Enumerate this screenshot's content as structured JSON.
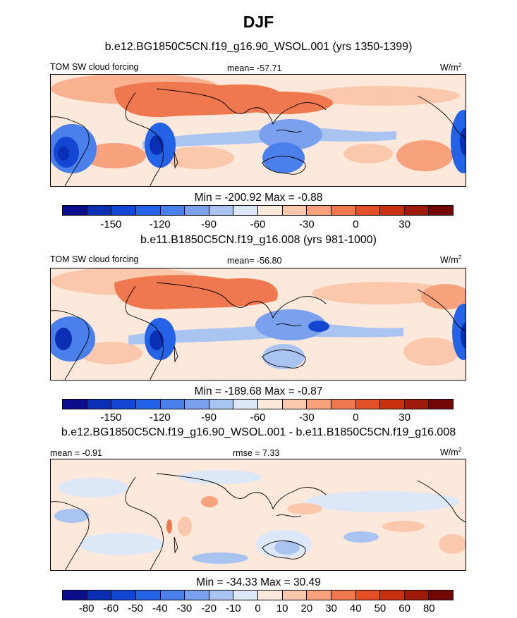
{
  "figure": {
    "title": "DJF",
    "units": "W/m",
    "units_sup": "2"
  },
  "chart_data": [
    {
      "type": "heatmap",
      "title": "b.e12.BG1850C5CN.f19_g16.90_WSOL.001 (yrs 1350-1399)",
      "variable": "TOM SW cloud forcing",
      "mean_label": "mean= -57.71",
      "minmax_label": "Min = -200.92 Max =  -0.88",
      "min": -200.92,
      "max": -0.88,
      "mean": -57.71,
      "colorbar": {
        "levels": [
          -165,
          -150,
          -135,
          -120,
          -105,
          -90,
          -75,
          -60,
          -45,
          -30,
          -15,
          0,
          15,
          30,
          45
        ],
        "tick_labels": [
          "-150",
          "-120",
          "-90",
          "-60",
          "-30",
          "0",
          "30"
        ],
        "colors": [
          "#0b0d8c",
          "#0a2fb4",
          "#1346d2",
          "#2563e6",
          "#4b80ec",
          "#7aa0ee",
          "#aac4f2",
          "#dce7f7",
          "#fde9dc",
          "#fbc8ac",
          "#f7a27c",
          "#f0784f",
          "#e34f26",
          "#c8300f",
          "#9e1b0b",
          "#740606"
        ]
      }
    },
    {
      "type": "heatmap",
      "title": "b.e11.B1850C5CN.f19_g16.008 (yrs 981-1000)",
      "variable": "TOM SW cloud forcing",
      "mean_label": "mean= -56.80",
      "minmax_label": "Min = -189.68 Max =  -0.87",
      "min": -189.68,
      "max": -0.87,
      "mean": -56.8,
      "colorbar": {
        "levels": [
          -165,
          -150,
          -135,
          -120,
          -105,
          -90,
          -75,
          -60,
          -45,
          -30,
          -15,
          0,
          15,
          30,
          45
        ],
        "tick_labels": [
          "-150",
          "-120",
          "-90",
          "-60",
          "-30",
          "0",
          "30"
        ],
        "colors": [
          "#0b0d8c",
          "#0a2fb4",
          "#1346d2",
          "#2563e6",
          "#4b80ec",
          "#7aa0ee",
          "#aac4f2",
          "#dce7f7",
          "#fde9dc",
          "#fbc8ac",
          "#f7a27c",
          "#f0784f",
          "#e34f26",
          "#c8300f",
          "#9e1b0b",
          "#740606"
        ]
      }
    },
    {
      "type": "heatmap",
      "title": "b.e12.BG1850C5CN.f19_g16.90_WSOL.001 - b.e11.B1850C5CN.f19_g16.008",
      "mean_label": "mean =  -0.91",
      "rmse_label": "rmse =   7.33",
      "minmax_label": "Min = -34.33 Max =  30.49",
      "min": -34.33,
      "max": 30.49,
      "mean": -0.91,
      "rmse": 7.33,
      "colorbar": {
        "levels": [
          -80,
          -60,
          -50,
          -40,
          -30,
          -20,
          -10,
          0,
          10,
          20,
          30,
          40,
          50,
          60,
          80
        ],
        "tick_labels": [
          "-80",
          "-60",
          "-50",
          "-40",
          "-30",
          "-20",
          "-10",
          "0",
          "10",
          "20",
          "30",
          "40",
          "50",
          "60",
          "80"
        ],
        "colors": [
          "#0b0d8c",
          "#0a2fb4",
          "#1346d2",
          "#2563e6",
          "#4b80ec",
          "#7aa0ee",
          "#aac4f2",
          "#dce7f7",
          "#fde9dc",
          "#fbc8ac",
          "#f7a27c",
          "#f0784f",
          "#e34f26",
          "#c8300f",
          "#9e1b0b",
          "#740606"
        ]
      }
    }
  ]
}
